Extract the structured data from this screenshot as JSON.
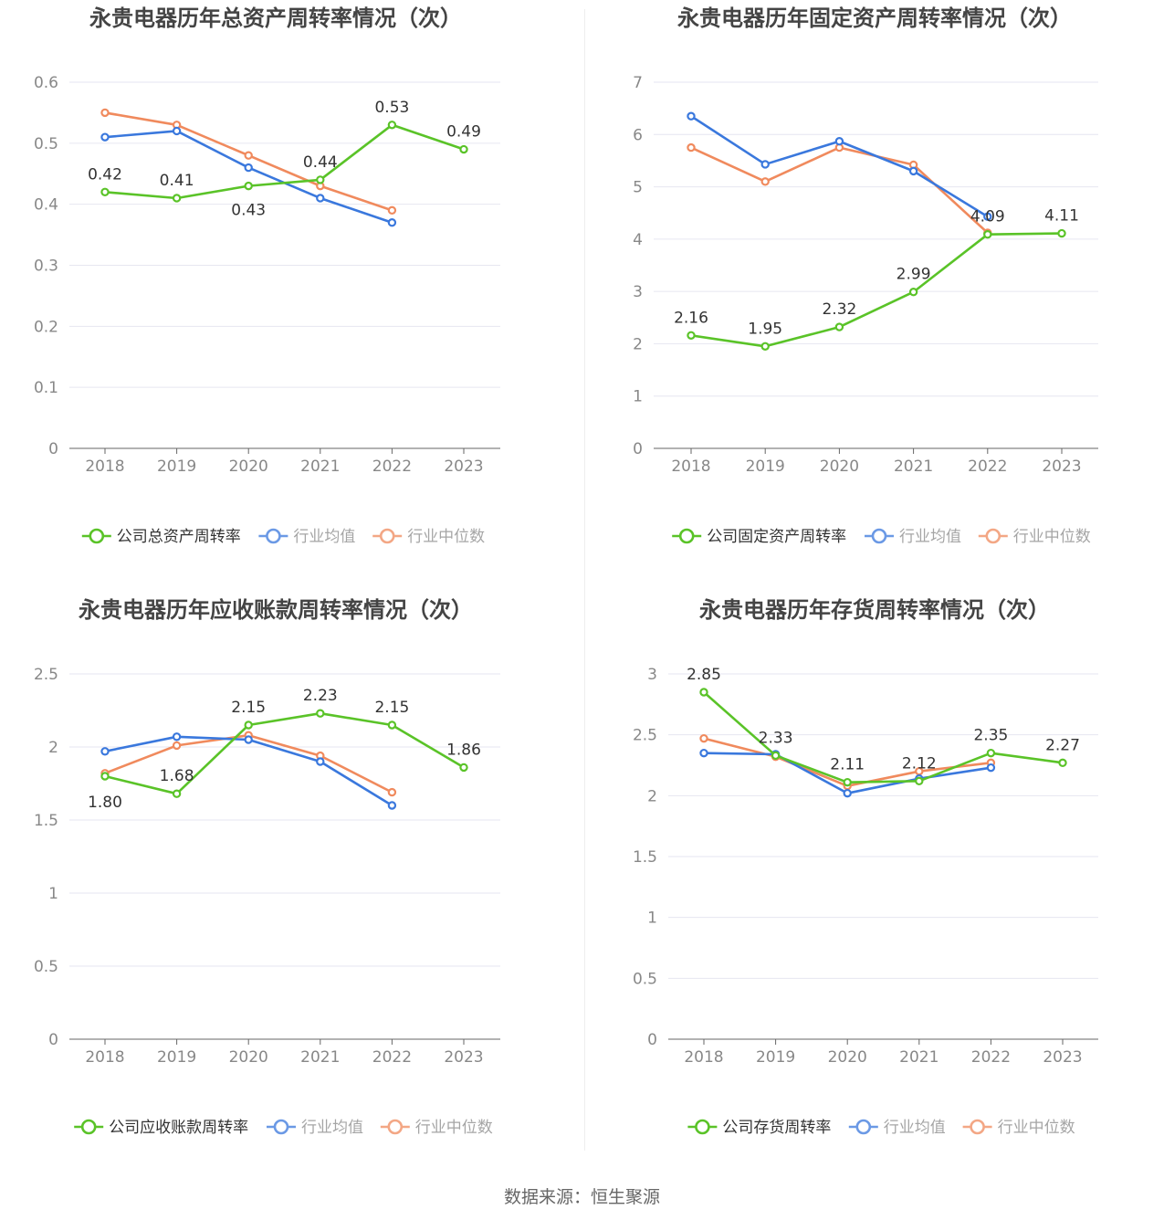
{
  "legend_labels": {
    "industry_avg": "行业均值",
    "industry_median": "行业中位数"
  },
  "colors": {
    "company": "#5ac328",
    "industry_avg": "#3a78dd",
    "industry_median": "#f08a5d",
    "axis": "#888888",
    "grid": "#e6e6f0",
    "title": "#444444"
  },
  "source": "数据来源：恒生聚源",
  "chart_data": [
    {
      "type": "line",
      "title": "永贵电器历年总资产周转率情况（次）",
      "x": [
        "2018",
        "2019",
        "2020",
        "2021",
        "2022",
        "2023"
      ],
      "ylim": [
        0,
        0.6
      ],
      "yticks": [
        0,
        0.1,
        0.2,
        0.3,
        0.4,
        0.5,
        0.6
      ],
      "ytick_labels": [
        "0",
        "0.1",
        "0.2",
        "0.3",
        "0.4",
        "0.5",
        "0.6"
      ],
      "grid": true,
      "legend_position": "bottom",
      "series": [
        {
          "name": "公司总资产周转率",
          "key": "company",
          "values": [
            0.42,
            0.41,
            0.43,
            0.44,
            0.53,
            0.49
          ],
          "labels": [
            "0.42",
            "0.41",
            "0.43",
            "0.44",
            "0.53",
            "0.49"
          ]
        },
        {
          "name": "行业均值",
          "key": "industry_avg",
          "values": [
            0.51,
            0.52,
            0.46,
            0.41,
            0.37,
            null
          ]
        },
        {
          "name": "行业中位数",
          "key": "industry_median",
          "values": [
            0.55,
            0.53,
            0.48,
            0.43,
            0.39,
            null
          ]
        }
      ]
    },
    {
      "type": "line",
      "title": "永贵电器历年固定资产周转率情况（次）",
      "x": [
        "2018",
        "2019",
        "2020",
        "2021",
        "2022",
        "2023"
      ],
      "ylim": [
        0,
        7
      ],
      "yticks": [
        0,
        1,
        2,
        3,
        4,
        5,
        6,
        7
      ],
      "ytick_labels": [
        "0",
        "1",
        "2",
        "3",
        "4",
        "5",
        "6",
        "7"
      ],
      "grid": true,
      "legend_position": "bottom",
      "series": [
        {
          "name": "公司固定资产周转率",
          "key": "company",
          "values": [
            2.16,
            1.95,
            2.32,
            2.99,
            4.09,
            4.11
          ],
          "labels": [
            "2.16",
            "1.95",
            "2.32",
            "2.99",
            "4.09",
            "4.11"
          ]
        },
        {
          "name": "行业均值",
          "key": "industry_avg",
          "values": [
            6.35,
            5.43,
            5.87,
            5.3,
            4.43,
            null
          ]
        },
        {
          "name": "行业中位数",
          "key": "industry_median",
          "values": [
            5.75,
            5.1,
            5.75,
            5.42,
            4.12,
            null
          ]
        }
      ]
    },
    {
      "type": "line",
      "title": "永贵电器历年应收账款周转率情况（次）",
      "x": [
        "2018",
        "2019",
        "2020",
        "2021",
        "2022",
        "2023"
      ],
      "ylim": [
        0,
        2.5
      ],
      "yticks": [
        0,
        0.5,
        1,
        1.5,
        2,
        2.5
      ],
      "ytick_labels": [
        "0",
        "0.5",
        "1",
        "1.5",
        "2",
        "2.5"
      ],
      "grid": true,
      "legend_position": "bottom",
      "series": [
        {
          "name": "公司应收账款周转率",
          "key": "company",
          "values": [
            1.8,
            1.68,
            2.15,
            2.23,
            2.15,
            1.86
          ],
          "labels": [
            "1.80",
            "1.68",
            "2.15",
            "2.23",
            "2.15",
            "1.86"
          ]
        },
        {
          "name": "行业均值",
          "key": "industry_avg",
          "values": [
            1.97,
            2.07,
            2.05,
            1.9,
            1.6,
            null
          ]
        },
        {
          "name": "行业中位数",
          "key": "industry_median",
          "values": [
            1.82,
            2.01,
            2.08,
            1.94,
            1.69,
            null
          ]
        }
      ]
    },
    {
      "type": "line",
      "title": "永贵电器历年存货周转率情况（次）",
      "x": [
        "2018",
        "2019",
        "2020",
        "2021",
        "2022",
        "2023"
      ],
      "ylim": [
        0,
        3
      ],
      "yticks": [
        0,
        0.5,
        1,
        1.5,
        2,
        2.5,
        3
      ],
      "ytick_labels": [
        "0",
        "0.5",
        "1",
        "1.5",
        "2",
        "2.5",
        "3"
      ],
      "grid": true,
      "legend_position": "bottom",
      "series": [
        {
          "name": "公司存货周转率",
          "key": "company",
          "values": [
            2.85,
            2.33,
            2.11,
            2.12,
            2.35,
            2.27
          ],
          "labels": [
            "2.85",
            "2.33",
            "2.11",
            "2.12",
            "2.35",
            "2.27"
          ]
        },
        {
          "name": "行业均值",
          "key": "industry_avg",
          "values": [
            2.35,
            2.34,
            2.02,
            2.14,
            2.23,
            null
          ]
        },
        {
          "name": "行业中位数",
          "key": "industry_median",
          "values": [
            2.47,
            2.32,
            2.08,
            2.2,
            2.27,
            null
          ]
        }
      ]
    }
  ]
}
